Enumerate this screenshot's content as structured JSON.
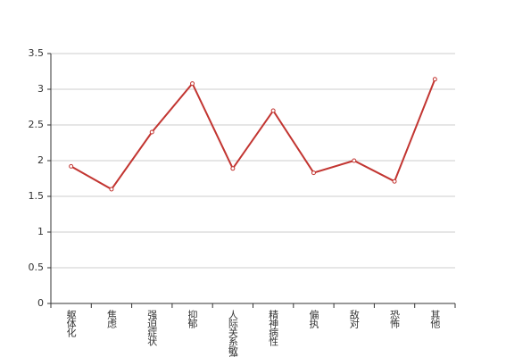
{
  "chart_data": {
    "type": "line",
    "categories": [
      "躯体化",
      "焦虑",
      "强迫症状",
      "抑郁",
      "人际关系敏感",
      "精神病性",
      "偏执",
      "敌对",
      "恐怖",
      "其他"
    ],
    "values": [
      1.92,
      1.6,
      2.4,
      3.08,
      1.89,
      2.7,
      1.83,
      2.0,
      1.71,
      3.14
    ],
    "color": "#c23531",
    "ylim": [
      0,
      3.5
    ],
    "yticks": [
      0,
      0.5,
      1,
      1.5,
      2,
      2.5,
      3,
      3.5
    ],
    "grid": true
  }
}
